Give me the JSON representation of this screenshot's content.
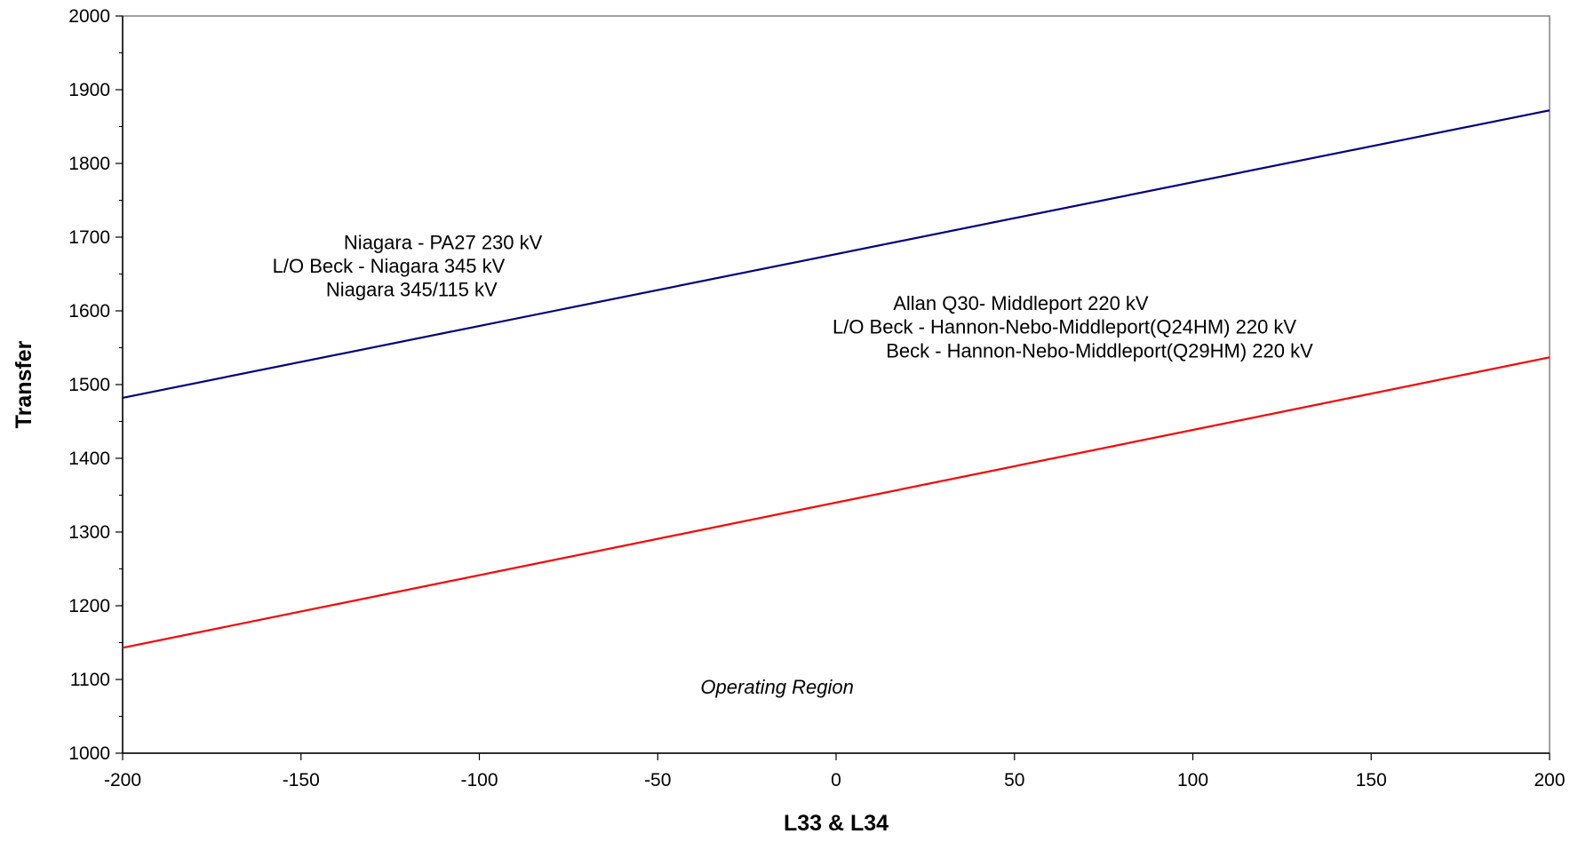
{
  "chart_data": {
    "type": "line",
    "title": "",
    "xlabel": "L33 & L34",
    "ylabel": "Transfer",
    "xlim": [
      -200,
      200
    ],
    "ylim": [
      1000,
      2000
    ],
    "x_ticks": [
      -200,
      -150,
      -100,
      -50,
      0,
      50,
      100,
      150,
      200
    ],
    "y_ticks": [
      1000,
      1100,
      1200,
      1300,
      1400,
      1500,
      1600,
      1700,
      1800,
      1900,
      2000
    ],
    "grid": false,
    "series": [
      {
        "color": "#000080",
        "x": [
          -200,
          200
        ],
        "y": [
          1482,
          1872
        ]
      },
      {
        "color": "#ff0000",
        "x": [
          -200,
          200
        ],
        "y": [
          1143,
          1537
        ]
      }
    ],
    "annotations": [
      {
        "text": "Niagara -  PA27 230 kV",
        "x": -138,
        "y": 1684
      },
      {
        "text": "L/O Beck - Niagara 345 kV",
        "x": -158,
        "y": 1652
      },
      {
        "text": "Niagara 345/115 kV",
        "x": -143,
        "y": 1620
      },
      {
        "text": "Allan Q30- Middleport 220 kV",
        "x": 16,
        "y": 1601
      },
      {
        "text": "L/O Beck - Hannon-Nebo-Middleport(Q24HM) 220 kV",
        "x": -1,
        "y": 1569
      },
      {
        "text": "Beck - Hannon-Nebo-Middleport(Q29HM) 220 kV",
        "x": 14,
        "y": 1537
      },
      {
        "text": "Operating Region",
        "x": -38,
        "y": 1081,
        "italic": true
      }
    ]
  }
}
